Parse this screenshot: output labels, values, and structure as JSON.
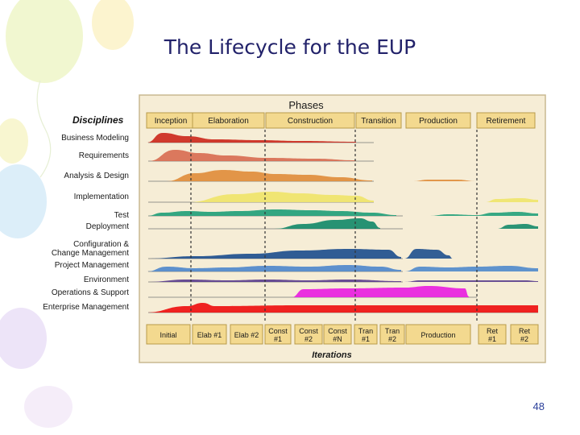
{
  "slide": {
    "title": "The Lifecycle for the EUP",
    "page_number": "48"
  },
  "diagram": {
    "disciplines_header": "Disciplines",
    "phases_header": "Phases",
    "iterations_header": "Iterations",
    "phases": [
      "Inception",
      "Elaboration",
      "Construction",
      "Transition",
      "Production",
      "Retirement"
    ],
    "disciplines": [
      {
        "label": "Business Modeling",
        "color": "#cc2a1e"
      },
      {
        "label": "Requirements",
        "color": "#d86e52"
      },
      {
        "label": "Analysis & Design",
        "color": "#e08d3c"
      },
      {
        "label": "Implementation",
        "color": "#efe46a"
      },
      {
        "label": "Test",
        "color": "#22a07a"
      },
      {
        "label": "Deployment",
        "color": "#158a6a"
      },
      {
        "label": "Configuration &\nChange Management",
        "color": "#1e4f8e"
      },
      {
        "label": "Project Management",
        "color": "#4f88cc"
      },
      {
        "label": "Environment",
        "color": "#5a3e8e"
      },
      {
        "label": "Operations & Support",
        "color": "#e81ee0"
      },
      {
        "label": "Enterprise Management",
        "color": "#ee1010"
      }
    ],
    "iterations": [
      {
        "line1": "Initial",
        "line2": ""
      },
      {
        "line1": "Elab #1",
        "line2": ""
      },
      {
        "line1": "Elab #2",
        "line2": ""
      },
      {
        "line1": "Const",
        "line2": "#1"
      },
      {
        "line1": "Const",
        "line2": "#2"
      },
      {
        "line1": "Const",
        "line2": "#N"
      },
      {
        "line1": "Tran",
        "line2": "#1"
      },
      {
        "line1": "Tran",
        "line2": "#2"
      },
      {
        "line1": "Production",
        "line2": ""
      },
      {
        "line1": "Ret",
        "line2": "#1"
      },
      {
        "line1": "Ret",
        "line2": "#2"
      }
    ]
  },
  "colors": {
    "panel_bg": "#f6edd6",
    "header_box": "#f3d98f",
    "box_border": "#b89a4a",
    "text_dark": "#1a1a1a"
  }
}
